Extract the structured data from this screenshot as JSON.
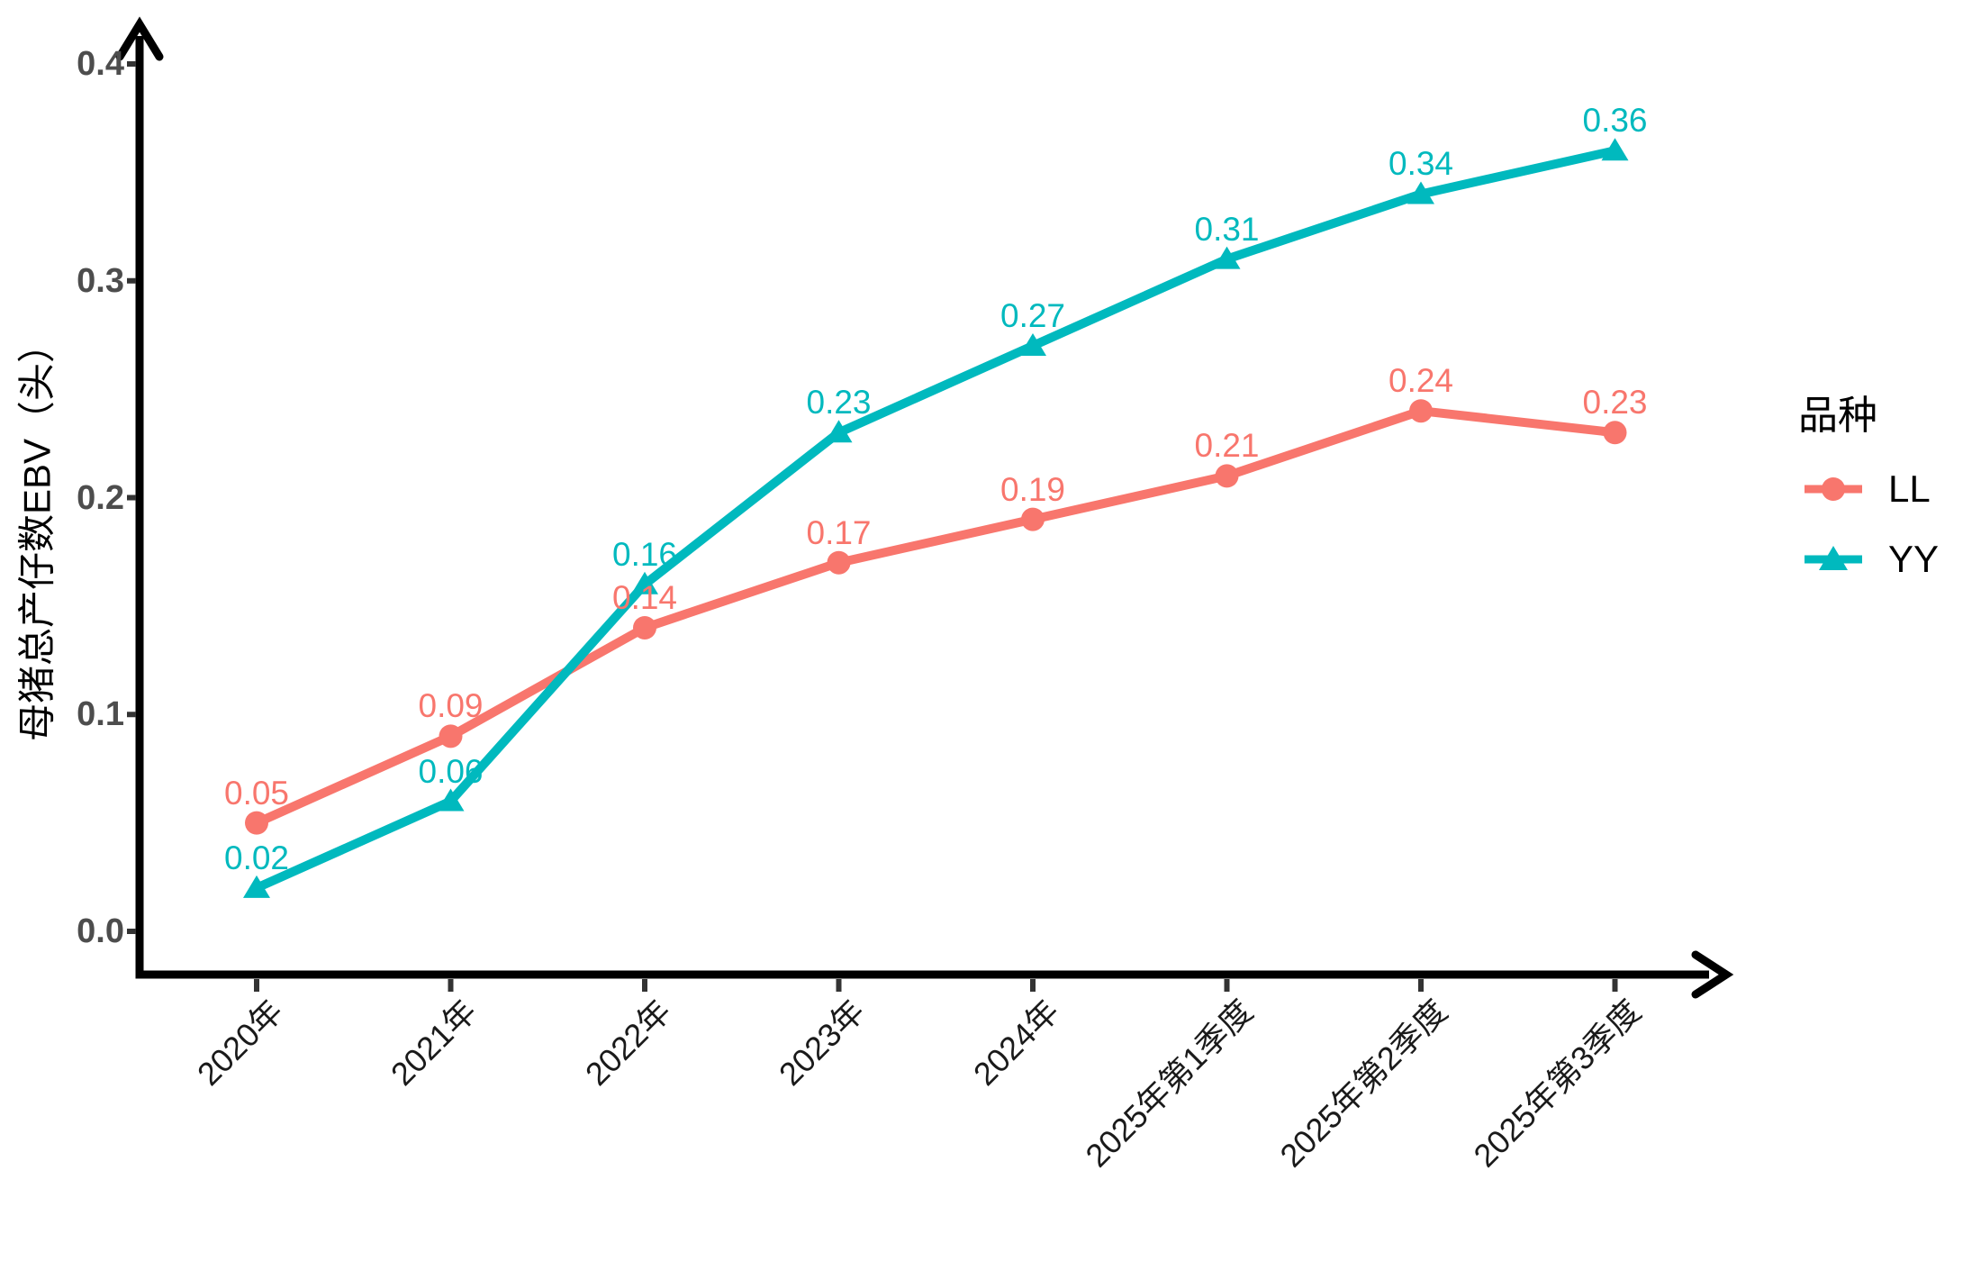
{
  "chart_data": {
    "type": "line",
    "title": "",
    "xlabel": "",
    "ylabel": "母猪总产仔数EBV（头）",
    "categories": [
      "2020年",
      "2021年",
      "2022年",
      "2023年",
      "2024年",
      "2025年第1季度",
      "2025年第2季度",
      "2025年第3季度"
    ],
    "series": [
      {
        "name": "LL",
        "color": "#F8766D",
        "marker": "circle",
        "values": [
          0.05,
          0.09,
          0.14,
          0.17,
          0.19,
          0.21,
          0.24,
          0.23
        ],
        "labels": [
          "0.05",
          "0.09",
          "0.14",
          "0.17",
          "0.19",
          "0.21",
          "0.24",
          "0.23"
        ]
      },
      {
        "name": "YY",
        "color": "#00B9BE",
        "marker": "triangle",
        "values": [
          0.02,
          0.06,
          0.16,
          0.23,
          0.27,
          0.31,
          0.34,
          0.36
        ],
        "labels": [
          "0.02",
          "0.06",
          "0.16",
          "0.23",
          "0.27",
          "0.31",
          "0.34",
          "0.36"
        ]
      }
    ],
    "y_ticks": [
      "0.0",
      "0.1",
      "0.2",
      "0.3",
      "0.4"
    ],
    "ylim": [
      0,
      0.4
    ],
    "grid": false,
    "legend": {
      "title": "品种",
      "position": "right"
    },
    "colors": {
      "axis_line": "#000000",
      "tick_mark": "#333333",
      "y_tick_label": "#4d4d4d",
      "x_tick_label": "#1a1a1a"
    }
  }
}
